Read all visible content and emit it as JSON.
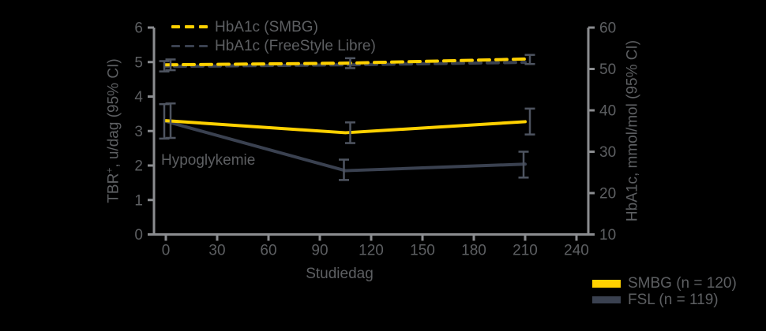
{
  "colors": {
    "background": "#000000",
    "smbg_yellow": "#FFD100",
    "fsl_navy": "#3A4150",
    "axis_gray": "#8B8D90",
    "text_gray": "#5D5F62",
    "errorbar_gray": "#4E5460"
  },
  "legend_top": {
    "items": [
      {
        "label": "HbA1c (SMBG)",
        "series": "smbg"
      },
      {
        "label": "HbA1c (FreeStyle Libre)",
        "series": "fsl"
      }
    ]
  },
  "legend_bottom": {
    "items": [
      {
        "label": "SMBG (n = 120)",
        "series": "smbg"
      },
      {
        "label": "FSL (n = 119)",
        "series": "fsl"
      }
    ]
  },
  "annotation": "Hypoglykemie",
  "axes": {
    "x": {
      "label": "Studiedag",
      "ticks": [
        0,
        30,
        60,
        90,
        120,
        150,
        180,
        210,
        240
      ],
      "range": [
        0,
        240
      ]
    },
    "y_left": {
      "label_pre": "TBR",
      "label_sup": "+",
      "label_post": ", u/dag (95% CI)",
      "ticks": [
        0,
        1,
        2,
        3,
        4,
        5,
        6
      ],
      "range": [
        0,
        6
      ]
    },
    "y_right": {
      "label": "HbA1c, mmol/mol (95% CI)",
      "ticks": [
        10,
        20,
        30,
        40,
        50,
        60
      ],
      "range": [
        10,
        60
      ]
    }
  },
  "chart_data": {
    "type": "line",
    "title": "",
    "xlabel": "Studiedag",
    "ylabel_left": "TBR+, u/dag (95% CI)",
    "ylabel_right": "HbA1c, mmol/mol (95% CI)",
    "x_days": [
      0,
      105,
      210
    ],
    "grid": false,
    "series": [
      {
        "name": "HbA1c (SMBG)",
        "axis": "right",
        "unit": "mmol/mol",
        "style": "dashed",
        "color_key": "smbg",
        "values": [
          51.0,
          51.4,
          52.4
        ],
        "ci_low": [
          49.7,
          50.2,
          51.2
        ],
        "ci_high": [
          52.3,
          52.6,
          53.4
        ],
        "error_bars_at": [
          0,
          105,
          210
        ]
      },
      {
        "name": "HbA1c (FreeStyle Libre)",
        "axis": "right",
        "unit": "mmol/mol",
        "style": "dashed",
        "color_key": "fsl",
        "values": [
          50.6,
          51.0,
          51.6
        ],
        "ci_low": [
          49.4,
          null,
          null
        ],
        "ci_high": [
          51.9,
          null,
          null
        ],
        "error_bars_at": [
          0
        ]
      },
      {
        "name": "SMBG (n = 120)",
        "axis": "left",
        "unit": "u/dag",
        "style": "solid",
        "color_key": "smbg",
        "values": [
          3.3,
          2.95,
          3.27
        ],
        "ci_low": [
          2.8,
          2.65,
          2.9
        ],
        "ci_high": [
          3.8,
          3.25,
          3.65
        ],
        "error_bars_at": [
          0,
          105,
          210
        ]
      },
      {
        "name": "FSL (n = 119)",
        "axis": "left",
        "unit": "u/dag",
        "style": "solid",
        "color_key": "fsl",
        "values": [
          3.28,
          1.85,
          2.04
        ],
        "ci_low": [
          2.78,
          1.58,
          1.65
        ],
        "ci_high": [
          3.78,
          2.17,
          2.4
        ],
        "error_bars_at": [
          0,
          105,
          210
        ]
      }
    ]
  }
}
